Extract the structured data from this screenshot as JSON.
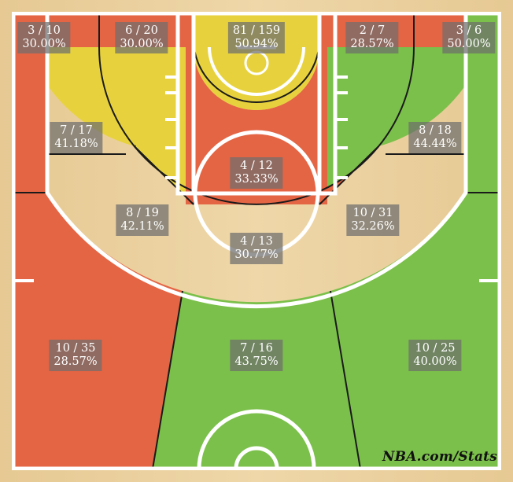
{
  "chart_data": {
    "type": "heatmap",
    "title": "",
    "colors": {
      "above": "#7bc04a",
      "average": "#e7d23e",
      "below": "#e46544",
      "line": "#ffffff",
      "border": "#1a1a1a",
      "wood": "#e9cf9e"
    },
    "zones": [
      {
        "id": "restricted-area",
        "made": 81,
        "attempts": 159,
        "made_attempts": "81 / 159",
        "pct_text": "50.94%",
        "rating": "average"
      },
      {
        "id": "paint-non-ra",
        "made": 4,
        "attempts": 12,
        "made_attempts": "4 / 12",
        "pct_text": "33.33%",
        "rating": "below"
      },
      {
        "id": "mid-left-baseline",
        "made": 6,
        "attempts": 20,
        "made_attempts": "6 / 20",
        "pct_text": "30.00%",
        "rating": "below"
      },
      {
        "id": "mid-right-baseline",
        "made": 2,
        "attempts": 7,
        "made_attempts": "2 / 7",
        "pct_text": "28.57%",
        "rating": "below"
      },
      {
        "id": "mid-left-wing",
        "made": 8,
        "attempts": 19,
        "made_attempts": "8 / 19",
        "pct_text": "42.11%",
        "rating": "average"
      },
      {
        "id": "mid-center",
        "made": 4,
        "attempts": 13,
        "made_attempts": "4 / 13",
        "pct_text": "30.77%",
        "rating": "below"
      },
      {
        "id": "mid-right-wing",
        "made": 10,
        "attempts": 31,
        "made_attempts": "10 / 31",
        "pct_text": "32.26%",
        "rating": "below"
      },
      {
        "id": "corner-left-three",
        "made": 3,
        "attempts": 10,
        "made_attempts": "3 / 10",
        "pct_text": "30.00%",
        "rating": "below"
      },
      {
        "id": "corner-right-three",
        "made": 3,
        "attempts": 6,
        "made_attempts": "3 / 6",
        "pct_text": "50.00%",
        "rating": "above"
      },
      {
        "id": "mid-left-elbow",
        "made": 7,
        "attempts": 17,
        "made_attempts": "7 / 17",
        "pct_text": "41.18%",
        "rating": "average"
      },
      {
        "id": "mid-right-elbow",
        "made": 8,
        "attempts": 18,
        "made_attempts": "8 / 18",
        "pct_text": "44.44%",
        "rating": "above"
      },
      {
        "id": "three-left-wing",
        "made": 10,
        "attempts": 35,
        "made_attempts": "10 / 35",
        "pct_text": "28.57%",
        "rating": "below"
      },
      {
        "id": "three-center",
        "made": 7,
        "attempts": 16,
        "made_attempts": "7 / 16",
        "pct_text": "43.75%",
        "rating": "above"
      },
      {
        "id": "three-right-wing",
        "made": 10,
        "attempts": 25,
        "made_attempts": "10 / 25",
        "pct_text": "40.00%",
        "rating": "above"
      }
    ]
  },
  "watermark": "NBA.com/Stats"
}
